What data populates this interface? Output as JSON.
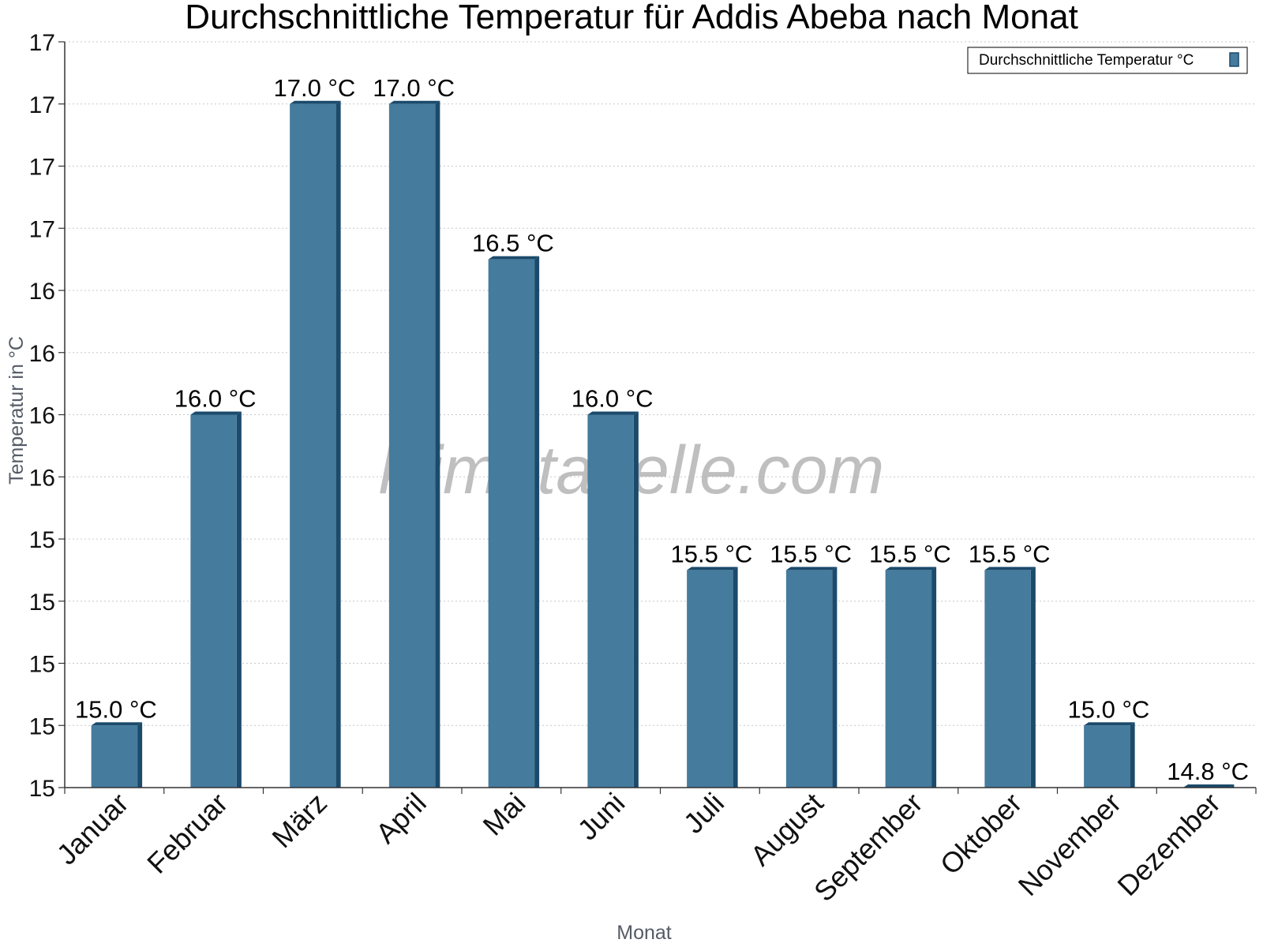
{
  "chart_data": {
    "type": "bar",
    "title": "Durchschnittliche Temperatur für Addis Abeba nach Monat",
    "xlabel": "Monat",
    "ylabel": "Temperatur in °C",
    "categories": [
      "Januar",
      "Februar",
      "März",
      "April",
      "Mai",
      "Juni",
      "Juli",
      "August",
      "September",
      "Oktober",
      "November",
      "Dezember"
    ],
    "series": [
      {
        "name": "Durchschnittliche Temperatur °C",
        "values": [
          15.0,
          16.0,
          17.0,
          17.0,
          16.5,
          16.0,
          15.5,
          15.5,
          15.5,
          15.5,
          15.0,
          14.8
        ]
      }
    ],
    "data_labels": [
      "15.0 °C",
      "16.0 °C",
      "17.0 °C",
      "17.0 °C",
      "16.5 °C",
      "16.0 °C",
      "15.5 °C",
      "15.5 °C",
      "15.5 °C",
      "15.5 °C",
      "15.0 °C",
      "14.8 °C"
    ],
    "ylim": [
      14.8,
      17.2
    ],
    "ytick_values": [
      14.8,
      15.0,
      15.2,
      15.4,
      15.6,
      15.8,
      16.0,
      16.2,
      16.4,
      16.6,
      16.8,
      17.0,
      17.2
    ],
    "ytick_labels": [
      "15",
      "15",
      "15",
      "15",
      "15",
      "16",
      "16",
      "16",
      "16",
      "17",
      "17",
      "17",
      "17"
    ],
    "grid": true,
    "legend_position": "top-right",
    "bar_color": "#457b9d",
    "bar_edge_color": "#1b4a6b",
    "watermark": "klimatabelle.com"
  }
}
